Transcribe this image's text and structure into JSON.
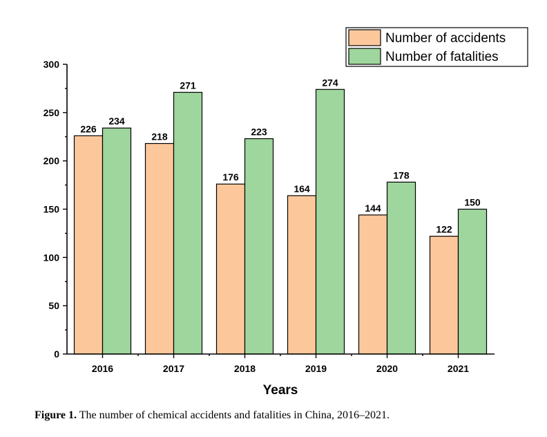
{
  "chart_data": {
    "type": "bar",
    "title": "",
    "xlabel": "Years",
    "ylabel": "",
    "ylim": [
      0,
      300
    ],
    "yticks": [
      0,
      50,
      100,
      150,
      200,
      250,
      300
    ],
    "categories": [
      "2016",
      "2017",
      "2018",
      "2019",
      "2020",
      "2021"
    ],
    "series": [
      {
        "name": "Number of accidents",
        "color": "#fcc89b",
        "values": [
          226,
          218,
          176,
          164,
          144,
          122
        ]
      },
      {
        "name": "Number of fatalities",
        "color": "#9ed69d",
        "values": [
          234,
          271,
          223,
          274,
          178,
          150
        ]
      }
    ],
    "legend_position": "top-right",
    "grid": false
  },
  "caption": {
    "label": "Figure 1.",
    "text": "The number of chemical accidents and fatalities in China, 2016–2021."
  }
}
